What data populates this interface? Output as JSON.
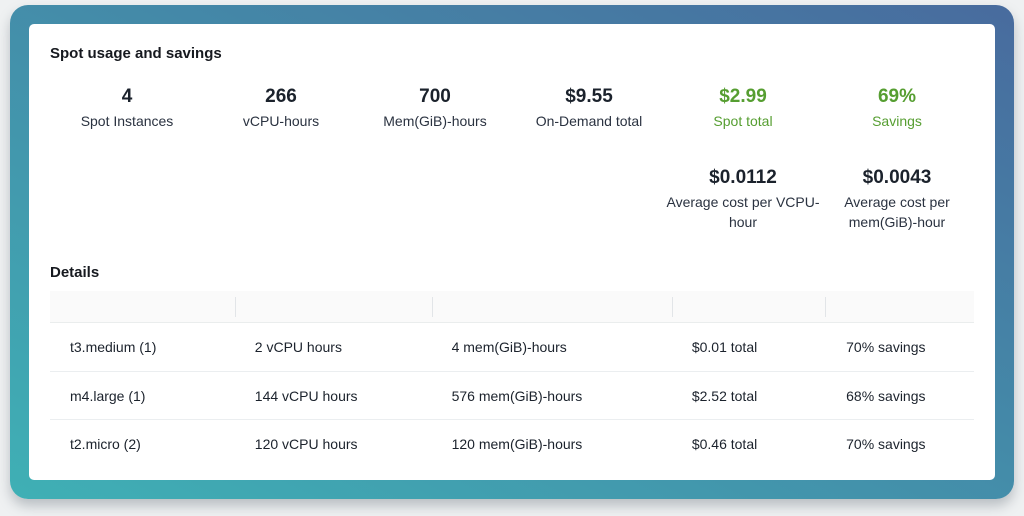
{
  "panel": {
    "title": "Spot usage and savings",
    "details_title": "Details"
  },
  "colors": {
    "accent_green": "#569e31",
    "frame_gradient_start": "#3fb0b5",
    "frame_gradient_end": "#486b9e"
  },
  "summary_stats": [
    {
      "value": "4",
      "label": "Spot Instances",
      "highlight": false
    },
    {
      "value": "266",
      "label": "vCPU-hours",
      "highlight": false
    },
    {
      "value": "700",
      "label": "Mem(GiB)-hours",
      "highlight": false
    },
    {
      "value": "$9.55",
      "label": "On-Demand total",
      "highlight": false
    },
    {
      "value": "$2.99",
      "label": "Spot total",
      "highlight": true
    },
    {
      "value": "69%",
      "label": "Savings",
      "highlight": true
    }
  ],
  "average_stats": [
    {
      "value": "$0.0112",
      "label": "Average cost per VCPU-hour"
    },
    {
      "value": "$0.0043",
      "label": "Average cost per mem(GiB)-hour"
    }
  ],
  "details_table": {
    "rows": [
      {
        "instance": "t3.medium (1)",
        "vcpu": "2 vCPU hours",
        "mem": "4 mem(GiB)-hours",
        "total": "$0.01 total",
        "savings": "70% savings"
      },
      {
        "instance": "m4.large (1)",
        "vcpu": "144 vCPU hours",
        "mem": "576 mem(GiB)-hours",
        "total": "$2.52 total",
        "savings": "68% savings"
      },
      {
        "instance": "t2.micro (2)",
        "vcpu": "120 vCPU hours",
        "mem": "120 mem(GiB)-hours",
        "total": "$0.46 total",
        "savings": "70% savings"
      }
    ]
  }
}
